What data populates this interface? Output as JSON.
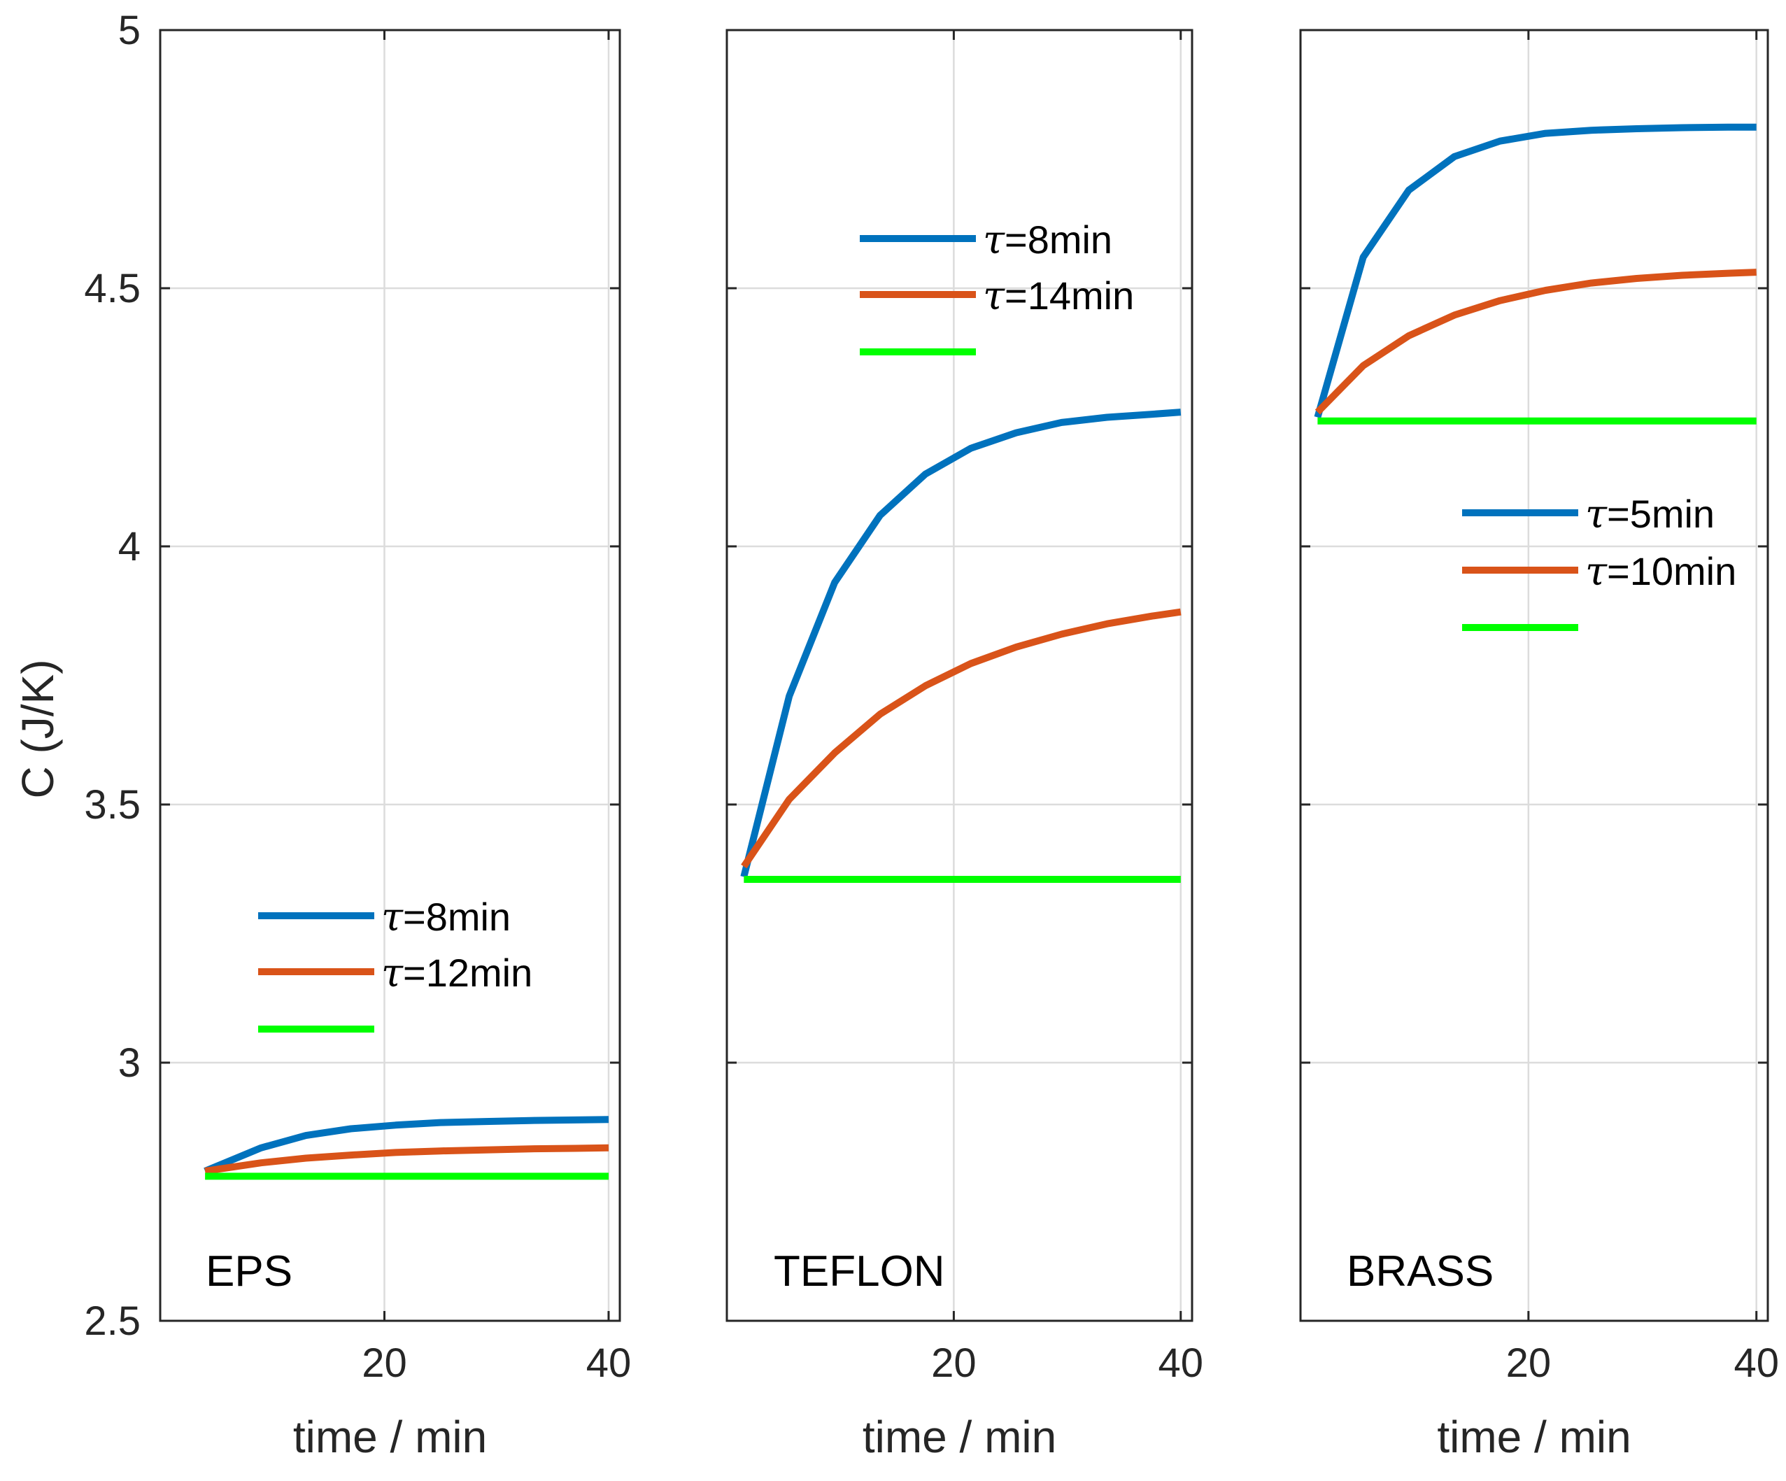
{
  "chart_data": [
    {
      "type": "line",
      "panel_label": "EPS",
      "title": "",
      "xlabel": "time / min",
      "ylabel": "C (J/K)",
      "xlim": [
        0,
        41
      ],
      "ylim": [
        2.5,
        5
      ],
      "xticks": [
        20,
        40
      ],
      "yticks": [
        2.5,
        3,
        3.5,
        4,
        4.5,
        5
      ],
      "ytick_labels": [
        "2.5",
        "3",
        "3.5",
        "4",
        "4.5",
        "5"
      ],
      "grid": true,
      "legend_position": "middle-left",
      "series": [
        {
          "name": "τ=8min",
          "tau_symbol": "τ",
          "name_text": "=8min",
          "color": "#0072BD",
          "x": [
            4,
            9,
            13,
            17,
            21,
            25,
            29,
            33,
            37,
            40
          ],
          "y": [
            2.79,
            2.835,
            2.859,
            2.872,
            2.879,
            2.884,
            2.886,
            2.888,
            2.889,
            2.89
          ]
        },
        {
          "name": "τ=12min",
          "tau_symbol": "τ",
          "name_text": "=12min",
          "color": "#D95319",
          "x": [
            4,
            9,
            13,
            17,
            21,
            25,
            29,
            33,
            37,
            40
          ],
          "y": [
            2.79,
            2.806,
            2.815,
            2.821,
            2.826,
            2.829,
            2.831,
            2.833,
            2.834,
            2.835
          ]
        },
        {
          "name": "",
          "tau_symbol": "",
          "name_text": "",
          "color": "#00FF00",
          "x": [
            4,
            40
          ],
          "y": [
            2.78,
            2.78
          ]
        }
      ]
    },
    {
      "type": "line",
      "panel_label": "TEFLON",
      "title": "",
      "xlabel": "time / min",
      "ylabel": "",
      "xlim": [
        0,
        41
      ],
      "ylim": [
        2.5,
        5
      ],
      "xticks": [
        20,
        40
      ],
      "yticks": [
        2.5,
        3,
        3.5,
        4,
        4.5,
        5
      ],
      "grid": true,
      "legend_position": "top-center",
      "series": [
        {
          "name": "τ=8min",
          "tau_symbol": "τ",
          "name_text": "=8min",
          "color": "#0072BD",
          "x": [
            1.5,
            5.5,
            9.5,
            13.5,
            17.5,
            21.5,
            25.5,
            29.5,
            33.5,
            37.5,
            40
          ],
          "y": [
            3.36,
            3.71,
            3.93,
            4.06,
            4.14,
            4.19,
            4.22,
            4.24,
            4.25,
            4.256,
            4.26
          ]
        },
        {
          "name": "τ=14min",
          "tau_symbol": "τ",
          "name_text": "=14min",
          "color": "#D95319",
          "x": [
            1.5,
            5.5,
            9.5,
            13.5,
            17.5,
            21.5,
            25.5,
            29.5,
            33.5,
            37.5,
            40
          ],
          "y": [
            3.38,
            3.51,
            3.6,
            3.675,
            3.73,
            3.773,
            3.805,
            3.83,
            3.85,
            3.865,
            3.873
          ]
        },
        {
          "name": "",
          "tau_symbol": "",
          "name_text": "",
          "color": "#00FF00",
          "x": [
            1.5,
            40
          ],
          "y": [
            3.355,
            3.355
          ]
        }
      ]
    },
    {
      "type": "line",
      "panel_label": "BRASS",
      "title": "",
      "xlabel": "time / min",
      "ylabel": "",
      "xlim": [
        0,
        41
      ],
      "ylim": [
        2.5,
        5
      ],
      "xticks": [
        20,
        40
      ],
      "yticks": [
        2.5,
        3,
        3.5,
        4,
        4.5,
        5
      ],
      "grid": true,
      "legend_position": "middle-right",
      "series": [
        {
          "name": "τ=5min",
          "tau_symbol": "τ",
          "name_text": "=5min",
          "color": "#0072BD",
          "x": [
            1.5,
            5.5,
            9.5,
            13.5,
            17.5,
            21.5,
            25.5,
            29.5,
            33.5,
            37.5,
            40
          ],
          "y": [
            4.25,
            4.56,
            4.69,
            4.755,
            4.785,
            4.8,
            4.806,
            4.809,
            4.811,
            4.812,
            4.812
          ]
        },
        {
          "name": "τ=10min",
          "tau_symbol": "τ",
          "name_text": "=10min",
          "color": "#D95319",
          "x": [
            1.5,
            5.5,
            9.5,
            13.5,
            17.5,
            21.5,
            25.5,
            29.5,
            33.5,
            37.5,
            40
          ],
          "y": [
            4.26,
            4.35,
            4.408,
            4.448,
            4.476,
            4.496,
            4.51,
            4.519,
            4.525,
            4.529,
            4.531
          ]
        },
        {
          "name": "",
          "tau_symbol": "",
          "name_text": "",
          "color": "#00FF00",
          "x": [
            1.5,
            40
          ],
          "y": [
            4.243,
            4.243
          ]
        }
      ]
    }
  ]
}
